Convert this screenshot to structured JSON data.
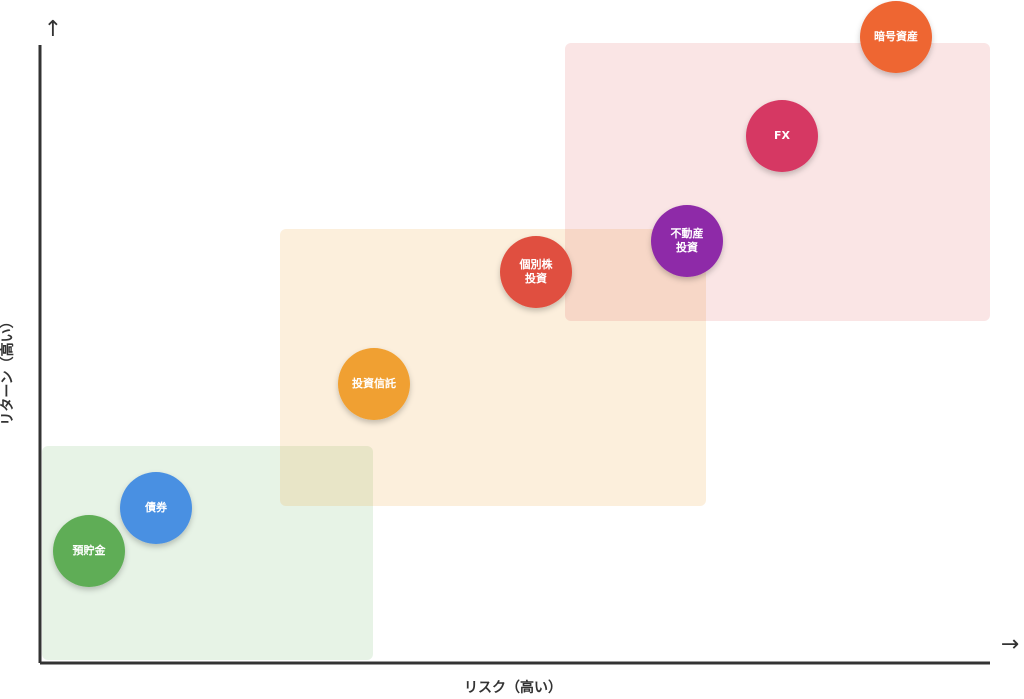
{
  "axes": {
    "x_label": "リスク（高い）",
    "y_label": "リターン（高い）",
    "x_arrow": "→",
    "y_arrow": "↑"
  },
  "nodes": [
    {
      "lines": [
        "預貯金"
      ],
      "color": "#5fad56"
    },
    {
      "lines": [
        "債券"
      ],
      "color": "#4a90e2"
    },
    {
      "lines": [
        "投資信託"
      ],
      "color": "#f0a030"
    },
    {
      "lines": [
        "個別株",
        "投資"
      ],
      "color": "#e0503f"
    },
    {
      "lines": [
        "不動産",
        "投資"
      ],
      "color": "#8e2aa8"
    },
    {
      "lines": [
        "FX"
      ],
      "color": "#d63864"
    },
    {
      "lines": [
        "暗号資産"
      ],
      "color": "#ee6633"
    }
  ]
}
